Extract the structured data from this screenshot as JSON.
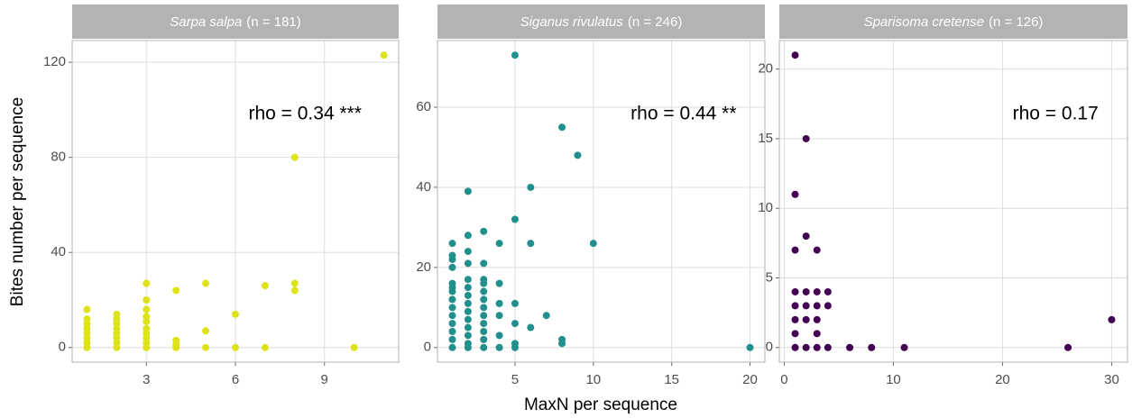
{
  "chart_data": [
    {
      "type": "scatter",
      "species": "Sarpa salpa",
      "n_label": "(n = 181)",
      "color": "#dde318",
      "ylabel": "Bites number per sequence",
      "annotation": "rho = 0.34 ***",
      "grid": true,
      "x": [
        1,
        1,
        1,
        1,
        1,
        1,
        1,
        1,
        2,
        2,
        2,
        2,
        2,
        2,
        2,
        2,
        3,
        3,
        3,
        3,
        3,
        3,
        3,
        3,
        3,
        3,
        4,
        4,
        4,
        4,
        5,
        5,
        5,
        6,
        6,
        7,
        7,
        8,
        8,
        8,
        10,
        11
      ],
      "y": [
        0,
        2,
        4,
        6,
        8,
        10,
        12,
        16,
        0,
        2,
        4,
        6,
        8,
        10,
        12,
        14,
        0,
        2,
        4,
        6,
        8,
        11,
        13,
        16,
        20,
        27,
        0,
        1,
        3,
        24,
        0,
        7,
        27,
        0,
        14,
        0,
        26,
        24,
        27,
        80,
        0,
        123
      ],
      "xlim": [
        0.5,
        11.5
      ],
      "ylim": [
        -6.15,
        129.15
      ],
      "xticks": [
        3,
        6,
        9
      ],
      "yticks": [
        0,
        40,
        80,
        120
      ]
    },
    {
      "type": "scatter",
      "species": "Siganus rivulatus",
      "n_label": "(n = 246)",
      "color": "#21908c",
      "xlabel": "MaxN per sequence",
      "annotation": "rho = 0.44 **",
      "grid": true,
      "x": [
        1,
        1,
        1,
        1,
        1,
        1,
        1,
        1,
        1,
        1,
        1,
        1,
        1,
        1,
        2,
        2,
        2,
        2,
        2,
        2,
        2,
        2,
        2,
        2,
        2,
        2,
        2,
        2,
        3,
        3,
        3,
        3,
        3,
        3,
        3,
        3,
        3,
        3,
        3,
        3,
        4,
        4,
        4,
        4,
        4,
        4,
        5,
        5,
        5,
        5,
        5,
        5,
        6,
        6,
        6,
        7,
        8,
        8,
        8,
        9,
        10,
        20
      ],
      "y": [
        0,
        2,
        4,
        6,
        8,
        10,
        12,
        14,
        15,
        16,
        20,
        22,
        23,
        26,
        0,
        1,
        3,
        5,
        7,
        9,
        11,
        13,
        15,
        17,
        21,
        24,
        28,
        39,
        0,
        2,
        4,
        6,
        8,
        10,
        12,
        14,
        16,
        17,
        21,
        29,
        0,
        3,
        8,
        11,
        16,
        26,
        0,
        1,
        6,
        11,
        32,
        73,
        5,
        26,
        40,
        8,
        1,
        2,
        55,
        48,
        26,
        0
      ],
      "xlim": [
        0.05,
        20.95
      ],
      "ylim": [
        -3.65,
        76.65
      ],
      "xticks": [
        5,
        10,
        15,
        20
      ],
      "yticks": [
        0,
        20,
        40,
        60
      ]
    },
    {
      "type": "scatter",
      "species": "Sparisoma cretense",
      "n_label": "(n = 126)",
      "color": "#440154",
      "annotation": "rho = 0.17",
      "grid": true,
      "x": [
        1,
        1,
        1,
        1,
        1,
        1,
        1,
        1,
        2,
        2,
        2,
        2,
        2,
        2,
        3,
        3,
        3,
        3,
        3,
        3,
        4,
        4,
        4,
        6,
        8,
        11,
        26,
        30
      ],
      "y": [
        0,
        1,
        2,
        3,
        4,
        7,
        11,
        21,
        0,
        2,
        3,
        4,
        8,
        15,
        0,
        1,
        2,
        3,
        4,
        7,
        0,
        3,
        4,
        0,
        0,
        0,
        0,
        2
      ],
      "xlim": [
        -0.45,
        31.45
      ],
      "ylim": [
        -1.05,
        22.05
      ],
      "xticks": [
        0,
        10,
        20,
        30
      ],
      "yticks": [
        0,
        5,
        10,
        15,
        20
      ]
    }
  ]
}
